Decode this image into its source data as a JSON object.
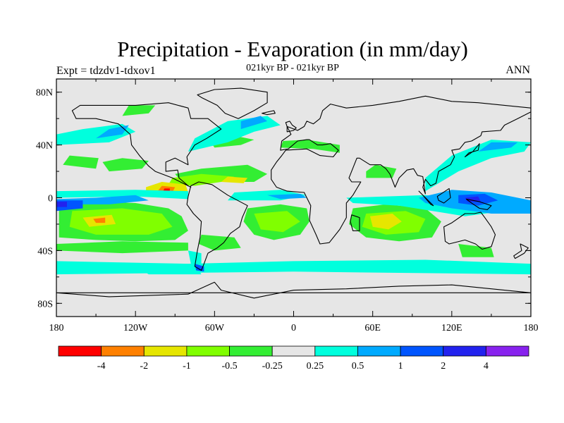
{
  "title": "Precipitation - Evaporation (in mm/day)",
  "expt_label": "Expt = tdzdv1-tdxov1",
  "subtitle": "021kyr BP - 021kyr BP",
  "season": "ANN",
  "map": {
    "projection": "cylindrical-equidistant",
    "lon_range": [
      -180,
      180
    ],
    "lat_range": [
      -90,
      90
    ],
    "background_color": "#e6e6e6",
    "lat_ticks": [
      {
        "value": 80,
        "label": "80N"
      },
      {
        "value": 40,
        "label": "40N"
      },
      {
        "value": 0,
        "label": "0"
      },
      {
        "value": -40,
        "label": "40S"
      },
      {
        "value": -80,
        "label": "80S"
      }
    ],
    "lon_ticks": [
      {
        "value": -180,
        "label": "180"
      },
      {
        "value": -120,
        "label": "120W"
      },
      {
        "value": -60,
        "label": "60W"
      },
      {
        "value": 0,
        "label": "0"
      },
      {
        "value": 60,
        "label": "60E"
      },
      {
        "value": 120,
        "label": "120E"
      },
      {
        "value": 180,
        "label": "180"
      }
    ]
  },
  "colorbar": {
    "colors": [
      "#ff0000",
      "#ff8000",
      "#e6e600",
      "#80ff00",
      "#33ee33",
      "#e6e6e6",
      "#00ffdd",
      "#00aaff",
      "#0055ff",
      "#2222ee",
      "#8822ee"
    ],
    "labels": [
      "-4",
      "-2",
      "-1",
      "-0.5",
      "-0.25",
      "0.25",
      "0.5",
      "1",
      "2",
      "4"
    ]
  },
  "field_colors": {
    "red": "#ff0000",
    "orange": "#ff8000",
    "yellow": "#e6e600",
    "lightgreen": "#80ff00",
    "green": "#33ee33",
    "cyan": "#00ffdd",
    "lightblue": "#00aaff",
    "blue": "#0055ff",
    "darkblue": "#2222ee"
  }
}
